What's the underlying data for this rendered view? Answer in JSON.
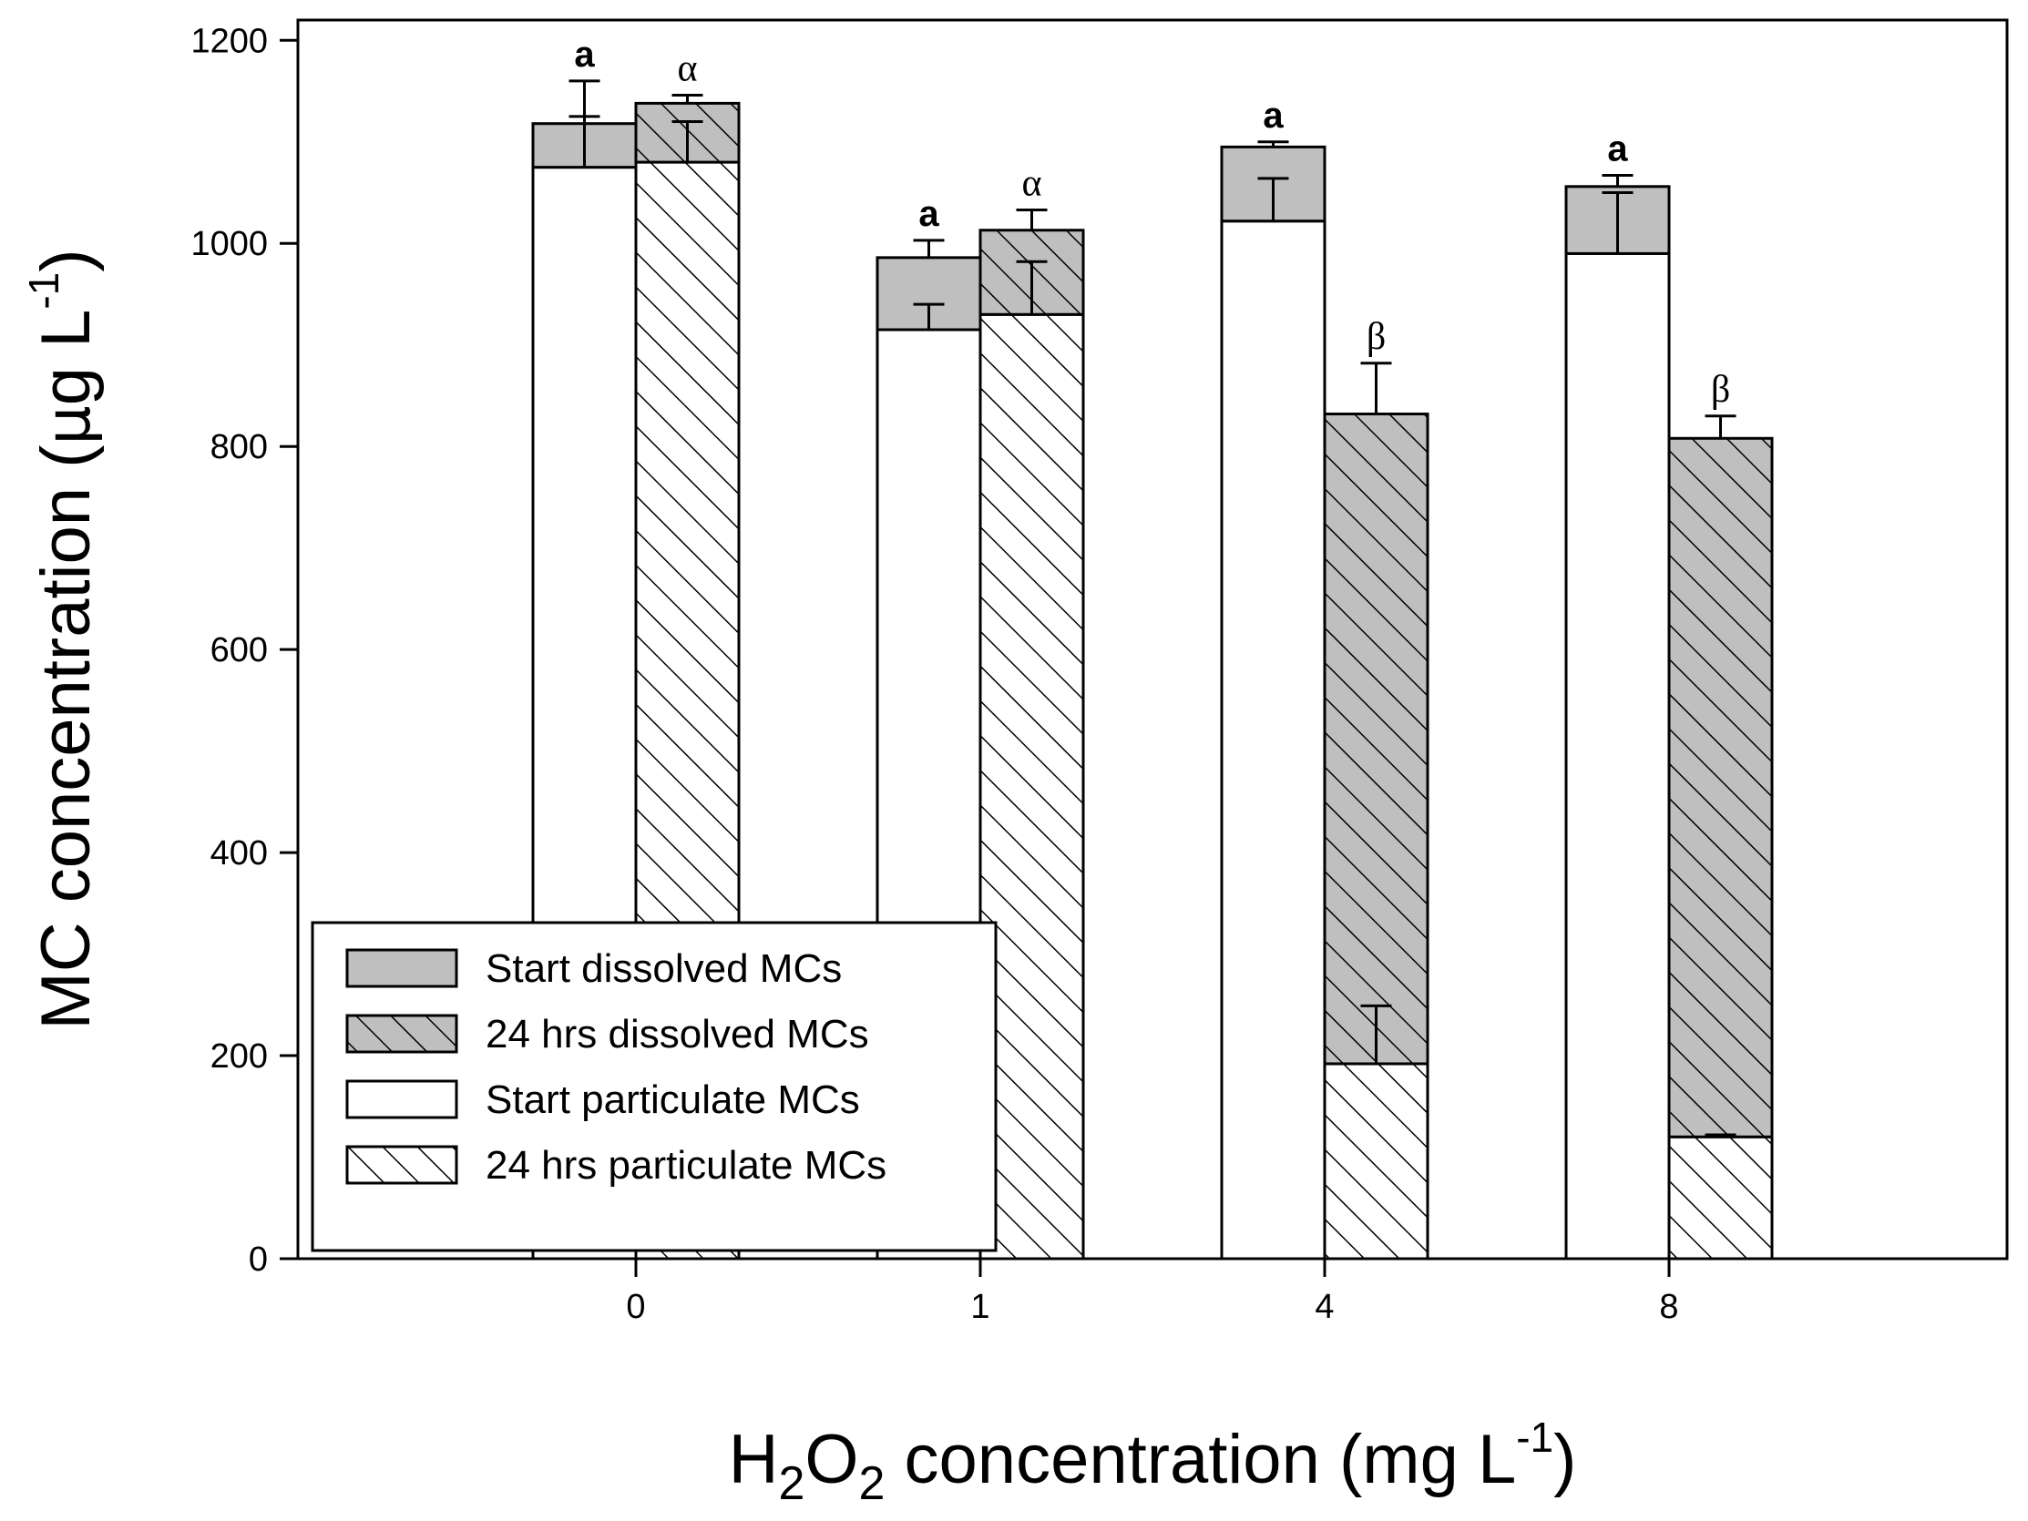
{
  "chart_data": {
    "type": "bar",
    "stacked": true,
    "categories": [
      "0",
      "1",
      "4",
      "8"
    ],
    "xlabel": {
      "pre": "H",
      "sub1": "2",
      "mid": "O",
      "sub2": "2",
      "post": " concentration (mg L",
      "sup": "-1",
      "end": ")"
    },
    "ylabel": {
      "pre": "MC concentration (",
      "mu": "μ",
      "post": "g L",
      "sup": "-1",
      "end": ")"
    },
    "ylim": [
      0,
      1220
    ],
    "yticks": [
      0,
      200,
      400,
      600,
      800,
      1000,
      1200
    ],
    "series": [
      {
        "name": "Start particulate MCs",
        "group": "start",
        "values": [
          1075,
          915,
          1022,
          990
        ],
        "errors": [
          50,
          25,
          42,
          60
        ]
      },
      {
        "name": "Start dissolved MCs",
        "group": "start",
        "values": [
          43,
          71,
          73,
          66
        ],
        "errors": [
          42,
          17,
          5,
          11
        ]
      },
      {
        "name": "24 hrs particulate MCs",
        "group": "24h",
        "values": [
          1080,
          930,
          192,
          120
        ],
        "errors": [
          40,
          52,
          57,
          2
        ]
      },
      {
        "name": "24 hrs dissolved MCs",
        "group": "24h",
        "values": [
          58,
          83,
          640,
          688
        ],
        "errors": [
          8,
          20,
          50,
          22
        ]
      }
    ],
    "significance": {
      "start": [
        "a",
        "a",
        "a",
        "a"
      ],
      "24h": [
        "α",
        "α",
        "β",
        "β"
      ]
    },
    "legend": {
      "position": "bottom-left",
      "entries": [
        "Start dissolved MCs",
        "24 hrs dissolved MCs",
        "Start particulate MCs",
        "24 hrs particulate MCs"
      ]
    },
    "grid": false
  }
}
